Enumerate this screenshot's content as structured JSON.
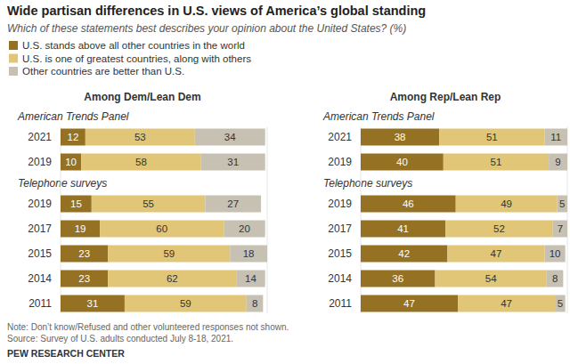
{
  "title": "Wide partisan differences in U.S. views of America’s global standing",
  "subtitle": "Which of these statements best describes your opinion about the United States? (%)",
  "note": "Note: Don’t know/Refused and other volunteered responses not shown.",
  "source": "Source: Survey of U.S. adults conducted July 8-18, 2021.",
  "credit": "PEW RESEARCH CENTER",
  "chart_data": [
    {
      "type": "bar",
      "orientation": "horizontal",
      "stacked": true,
      "data_labels": true,
      "tick_labels": "y",
      "legend": "top-left",
      "title": "Among Dem/Lean Dem",
      "categories": [
        "2021",
        "2019",
        "2019",
        "2017",
        "2015",
        "2014",
        "2011"
      ],
      "category_groups": [
        "American Trends Panel",
        "American Trends Panel",
        "Telephone surveys",
        "Telephone surveys",
        "Telephone surveys",
        "Telephone surveys",
        "Telephone surveys"
      ],
      "xlim": [
        0,
        100
      ],
      "series": [
        {
          "name": "U.S. stands above all other countries in the world",
          "color": "#957223",
          "values": [
            12,
            10,
            15,
            19,
            23,
            23,
            31
          ]
        },
        {
          "name": "U.S. is one of greatest countries, along with others",
          "color": "#e2c677",
          "values": [
            53,
            58,
            55,
            60,
            59,
            62,
            59
          ]
        },
        {
          "name": "Other countries are better than U.S.",
          "color": "#c6c1b3",
          "values": [
            34,
            31,
            27,
            20,
            18,
            14,
            8
          ]
        }
      ]
    },
    {
      "type": "bar",
      "orientation": "horizontal",
      "stacked": true,
      "data_labels": true,
      "tick_labels": "y",
      "title": "Among Rep/Lean Rep",
      "categories": [
        "2021",
        "2019",
        "2019",
        "2017",
        "2015",
        "2014",
        "2011"
      ],
      "category_groups": [
        "American Trends Panel",
        "American Trends Panel",
        "Telephone surveys",
        "Telephone surveys",
        "Telephone surveys",
        "Telephone surveys",
        "Telephone surveys"
      ],
      "xlim": [
        0,
        100
      ],
      "series": [
        {
          "color": "#957223",
          "values": [
            38,
            40,
            46,
            41,
            42,
            36,
            47
          ]
        },
        {
          "color": "#e2c677",
          "values": [
            51,
            51,
            49,
            52,
            47,
            54,
            47
          ]
        },
        {
          "color": "#c6c1b3",
          "values": [
            11,
            9,
            5,
            7,
            10,
            8,
            5
          ]
        }
      ]
    }
  ]
}
